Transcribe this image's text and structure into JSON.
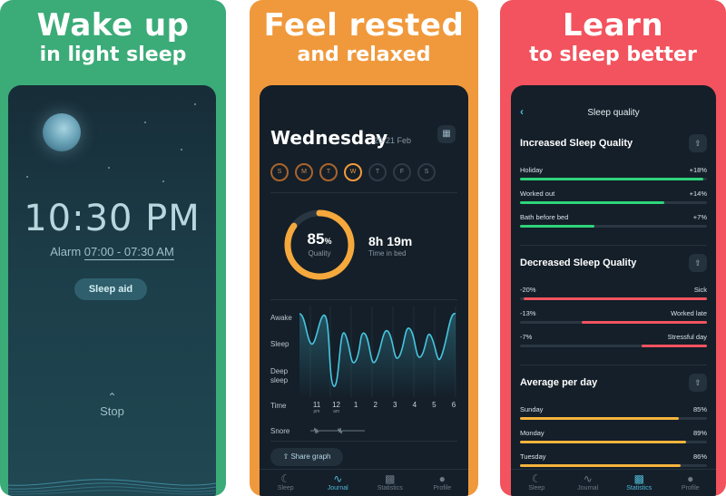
{
  "panels": [
    {
      "headline": "Wake up",
      "subheadline": "in light sleep"
    },
    {
      "headline": "Feel rested",
      "subheadline": "and relaxed"
    },
    {
      "headline": "Learn",
      "subheadline": "to sleep better"
    }
  ],
  "alarm_screen": {
    "time": "10:30 PM",
    "alarm_label": "Alarm",
    "alarm_range": "07:00 - 07:30 AM",
    "sleep_aid_button": "Sleep aid",
    "stop_label": "Stop"
  },
  "journal_screen": {
    "day": "Wednesday",
    "date_range": "20-21 Feb",
    "week_days": [
      {
        "letter": "S",
        "state": "done"
      },
      {
        "letter": "M",
        "state": "done"
      },
      {
        "letter": "T",
        "state": "done"
      },
      {
        "letter": "W",
        "state": "today"
      },
      {
        "letter": "T",
        "state": "future"
      },
      {
        "letter": "F",
        "state": "future"
      },
      {
        "letter": "S",
        "state": "future"
      }
    ],
    "quality_value": "85",
    "quality_unit": "%",
    "quality_label": "Quality",
    "quality_fraction": 0.85,
    "time_in_bed": "8h 19m",
    "time_in_bed_label": "Time in bed",
    "graph_labels": {
      "awake": "Awake",
      "sleep": "Sleep",
      "deep_line1": "Deep",
      "deep_line2": "sleep",
      "time": "Time",
      "snore": "Snore"
    },
    "time_ticks": [
      {
        "h": "11",
        "s": "pm"
      },
      {
        "h": "12",
        "s": "am"
      },
      {
        "h": "1",
        "s": ""
      },
      {
        "h": "2",
        "s": ""
      },
      {
        "h": "3",
        "s": ""
      },
      {
        "h": "4",
        "s": ""
      },
      {
        "h": "5",
        "s": ""
      },
      {
        "h": "6",
        "s": ""
      }
    ],
    "share_button": "Share graph"
  },
  "stats_screen": {
    "title": "Sleep quality",
    "sections": [
      {
        "title": "Increased Sleep Quality",
        "rows": [
          {
            "label": "Holiday",
            "value": "+18%",
            "fill": 0.98,
            "color": "#2ed47a",
            "align": "left"
          },
          {
            "label": "Worked out",
            "value": "+14%",
            "fill": 0.77,
            "color": "#2ed47a",
            "align": "left"
          },
          {
            "label": "Bath before bed",
            "value": "+7%",
            "fill": 0.4,
            "color": "#2ed47a",
            "align": "left"
          }
        ]
      },
      {
        "title": "Decreased Sleep Quality",
        "rows": [
          {
            "label": "-20%",
            "value": "Sick",
            "fill": 0.98,
            "color": "#f2535e",
            "align": "right"
          },
          {
            "label": "-13%",
            "value": "Worked late",
            "fill": 0.67,
            "color": "#f2535e",
            "align": "right"
          },
          {
            "label": "-7%",
            "value": "Stressful day",
            "fill": 0.35,
            "color": "#f2535e",
            "align": "right"
          }
        ]
      },
      {
        "title": "Average per day",
        "rows": [
          {
            "label": "Sunday",
            "value": "85%",
            "fill": 0.85,
            "color": "#f5b43c",
            "align": "left"
          },
          {
            "label": "Monday",
            "value": "89%",
            "fill": 0.89,
            "color": "#f5b43c",
            "align": "left"
          },
          {
            "label": "Tuesday",
            "value": "86%",
            "fill": 0.86,
            "color": "#f5b43c",
            "align": "left"
          }
        ]
      }
    ]
  },
  "nav": [
    "Sleep",
    "Journal",
    "Statistics",
    "Profile"
  ],
  "colors": {
    "green": "#3bab78",
    "orange": "#f0993c",
    "red": "#f2535e",
    "accent": "#4fb8d6"
  }
}
